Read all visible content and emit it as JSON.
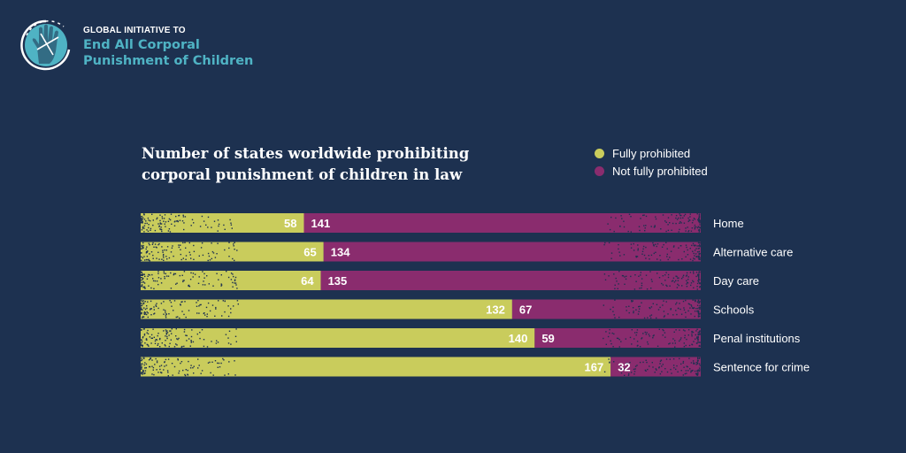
{
  "org": {
    "line1": "GLOBAL INITIATIVE TO",
    "line2": "End All Corporal",
    "line3": "Punishment of Children",
    "logo_icon": "hand-icon"
  },
  "colors": {
    "background": "#1d3150",
    "fully": "#c9cc5c",
    "not_fully": "#8a2c6e",
    "accent": "#4fb3c4"
  },
  "chart_data": {
    "type": "bar",
    "orientation": "horizontal",
    "stacked": true,
    "title": "Number of states worldwide prohibiting corporal punishment of children in law",
    "categories": [
      "Home",
      "Alternative care",
      "Day care",
      "Schools",
      "Penal institutions",
      "Sentence for crime"
    ],
    "series": [
      {
        "name": "Fully prohibited",
        "values": [
          58,
          65,
          64,
          132,
          140,
          167
        ]
      },
      {
        "name": "Not fully prohibited",
        "values": [
          141,
          134,
          135,
          67,
          59,
          32
        ]
      }
    ],
    "xlim": [
      0,
      199
    ],
    "grid": false,
    "legend_position": "top-right"
  }
}
